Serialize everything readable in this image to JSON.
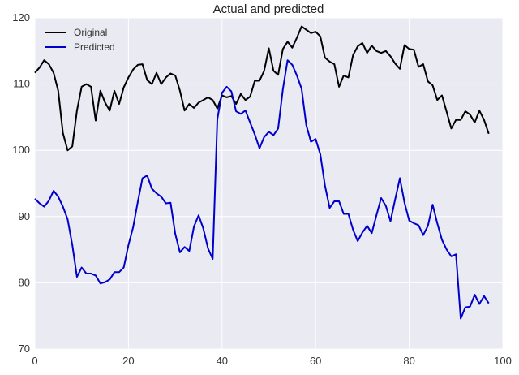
{
  "chart_data": {
    "type": "line",
    "title": "Actual and predicted",
    "xlabel": "",
    "ylabel": "",
    "xlim": [
      0,
      100
    ],
    "ylim": [
      70,
      120
    ],
    "xticks": [
      0,
      20,
      40,
      60,
      80,
      100
    ],
    "yticks": [
      70,
      80,
      90,
      100,
      110,
      120
    ],
    "grid": true,
    "background": "#eaeaf2",
    "gridcolor": "#ffffff",
    "legend": "top-left",
    "x": [
      0,
      1,
      2,
      3,
      4,
      5,
      6,
      7,
      8,
      9,
      10,
      11,
      12,
      13,
      14,
      15,
      16,
      17,
      18,
      19,
      20,
      21,
      22,
      23,
      24,
      25,
      26,
      27,
      28,
      29,
      30,
      31,
      32,
      33,
      34,
      35,
      36,
      37,
      38,
      39,
      40,
      41,
      42,
      43,
      44,
      45,
      46,
      47,
      48,
      49,
      50,
      51,
      52,
      53,
      54,
      55,
      56,
      57,
      58,
      59,
      60,
      61,
      62,
      63,
      64,
      65,
      66,
      67,
      68,
      69,
      70,
      71,
      72,
      73,
      74,
      75,
      76,
      77,
      78,
      79,
      80,
      81,
      82,
      83,
      84,
      85,
      86,
      87,
      88,
      89,
      90,
      91,
      92,
      93,
      94,
      95,
      96,
      97
    ],
    "series": [
      {
        "name": "Original",
        "color": "#000000",
        "values": [
          111.7,
          112.5,
          113.6,
          113.0,
          111.7,
          109.0,
          102.6,
          100.0,
          100.6,
          106.0,
          109.6,
          110.0,
          109.6,
          104.5,
          109.0,
          107.2,
          106.0,
          109.0,
          107.0,
          109.5,
          111.0,
          112.2,
          112.9,
          113.0,
          110.6,
          110.0,
          111.7,
          110.0,
          111.0,
          111.6,
          111.3,
          109.0,
          106.0,
          107.0,
          106.4,
          107.2,
          107.6,
          108.0,
          107.6,
          106.3,
          108.3,
          108.0,
          108.2,
          107.0,
          108.5,
          107.6,
          108.1,
          110.5,
          110.5,
          112.0,
          115.4,
          112.0,
          111.4,
          115.3,
          116.4,
          115.5,
          117.0,
          118.7,
          118.2,
          117.7,
          117.9,
          117.2,
          114.0,
          113.4,
          113.0,
          109.6,
          111.3,
          111.0,
          114.4,
          115.7,
          116.2,
          114.7,
          115.8,
          115.0,
          114.7,
          115.0,
          114.2,
          113.1,
          112.3,
          115.9,
          115.3,
          115.2,
          112.6,
          113.0,
          110.4,
          109.8,
          107.6,
          108.3,
          105.8,
          103.3,
          104.6,
          104.6,
          105.9,
          105.4,
          104.2,
          106.0,
          104.6,
          102.5
        ]
      },
      {
        "name": "Predicted",
        "color": "#0000cc",
        "values": [
          92.7,
          92.0,
          91.5,
          92.4,
          93.9,
          93.0,
          91.5,
          89.6,
          85.7,
          80.9,
          82.3,
          81.4,
          81.4,
          81.1,
          79.9,
          80.1,
          80.5,
          81.6,
          81.6,
          82.3,
          85.7,
          88.4,
          92.2,
          95.8,
          96.2,
          94.2,
          93.5,
          93.0,
          92.0,
          92.1,
          87.4,
          84.6,
          85.4,
          84.8,
          88.5,
          90.2,
          88.2,
          85.2,
          83.6,
          104.7,
          108.7,
          109.6,
          108.9,
          105.9,
          105.5,
          106.0,
          104.2,
          102.4,
          100.3,
          102.0,
          102.8,
          102.3,
          103.3,
          109.2,
          113.6,
          112.9,
          111.3,
          109.3,
          103.8,
          101.3,
          101.7,
          99.4,
          94.7,
          91.3,
          92.3,
          92.3,
          90.4,
          90.4,
          88.0,
          86.3,
          87.6,
          88.6,
          87.5,
          90.2,
          92.8,
          91.6,
          89.3,
          92.6,
          95.8,
          92.1,
          89.4,
          89.0,
          88.7,
          87.2,
          88.6,
          91.8,
          89.0,
          86.5,
          85.0,
          84.0,
          84.3,
          74.6,
          76.3,
          76.4,
          78.2,
          76.8,
          78.0,
          76.9
        ]
      }
    ]
  }
}
